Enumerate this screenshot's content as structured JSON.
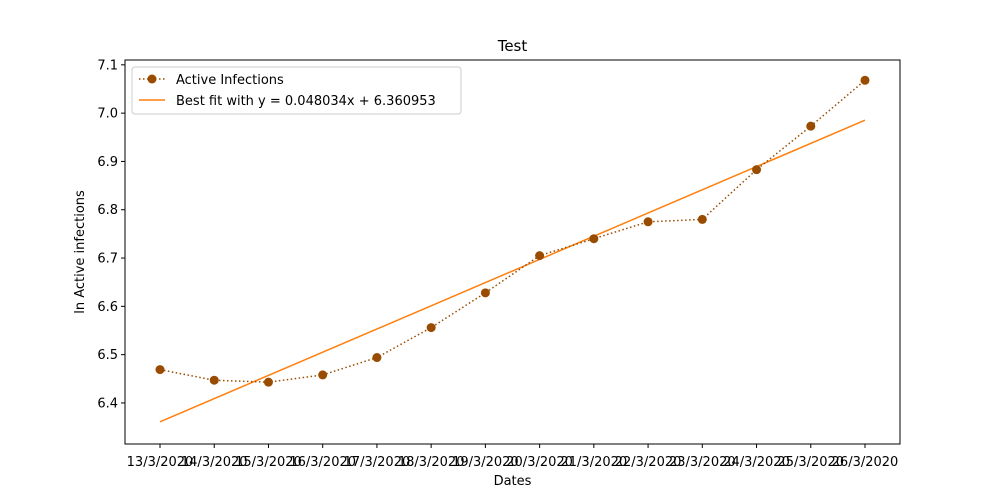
{
  "chart_data": {
    "type": "line",
    "title": "Test",
    "xlabel": "Dates",
    "ylabel": "ln Active infections",
    "categories": [
      "13/3/2020",
      "14/3/2020",
      "15/3/2020",
      "16/3/2020",
      "17/3/2020",
      "18/3/2020",
      "19/3/2020",
      "20/3/2020",
      "21/3/2020",
      "22/3/2020",
      "23/3/2020",
      "24/3/2020",
      "25/3/2020",
      "26/3/2020"
    ],
    "ylim": [
      6.315,
      7.11
    ],
    "yticks": [
      6.4,
      6.5,
      6.6,
      6.7,
      6.8,
      6.9,
      7.0,
      7.1
    ],
    "grid": false,
    "legend_position": "top-left",
    "series": [
      {
        "name": "Active Infections",
        "style": "dotted line with circle markers",
        "color": "#994c00",
        "values": [
          6.469,
          6.447,
          6.443,
          6.458,
          6.494,
          6.556,
          6.628,
          6.705,
          6.74,
          6.775,
          6.78,
          6.883,
          6.973,
          7.068
        ]
      },
      {
        "name": "Best fit with y = 0.048034x + 6.360953",
        "style": "solid line",
        "color": "#ff7f0e",
        "slope": 0.048034,
        "intercept": 6.360953
      }
    ]
  }
}
